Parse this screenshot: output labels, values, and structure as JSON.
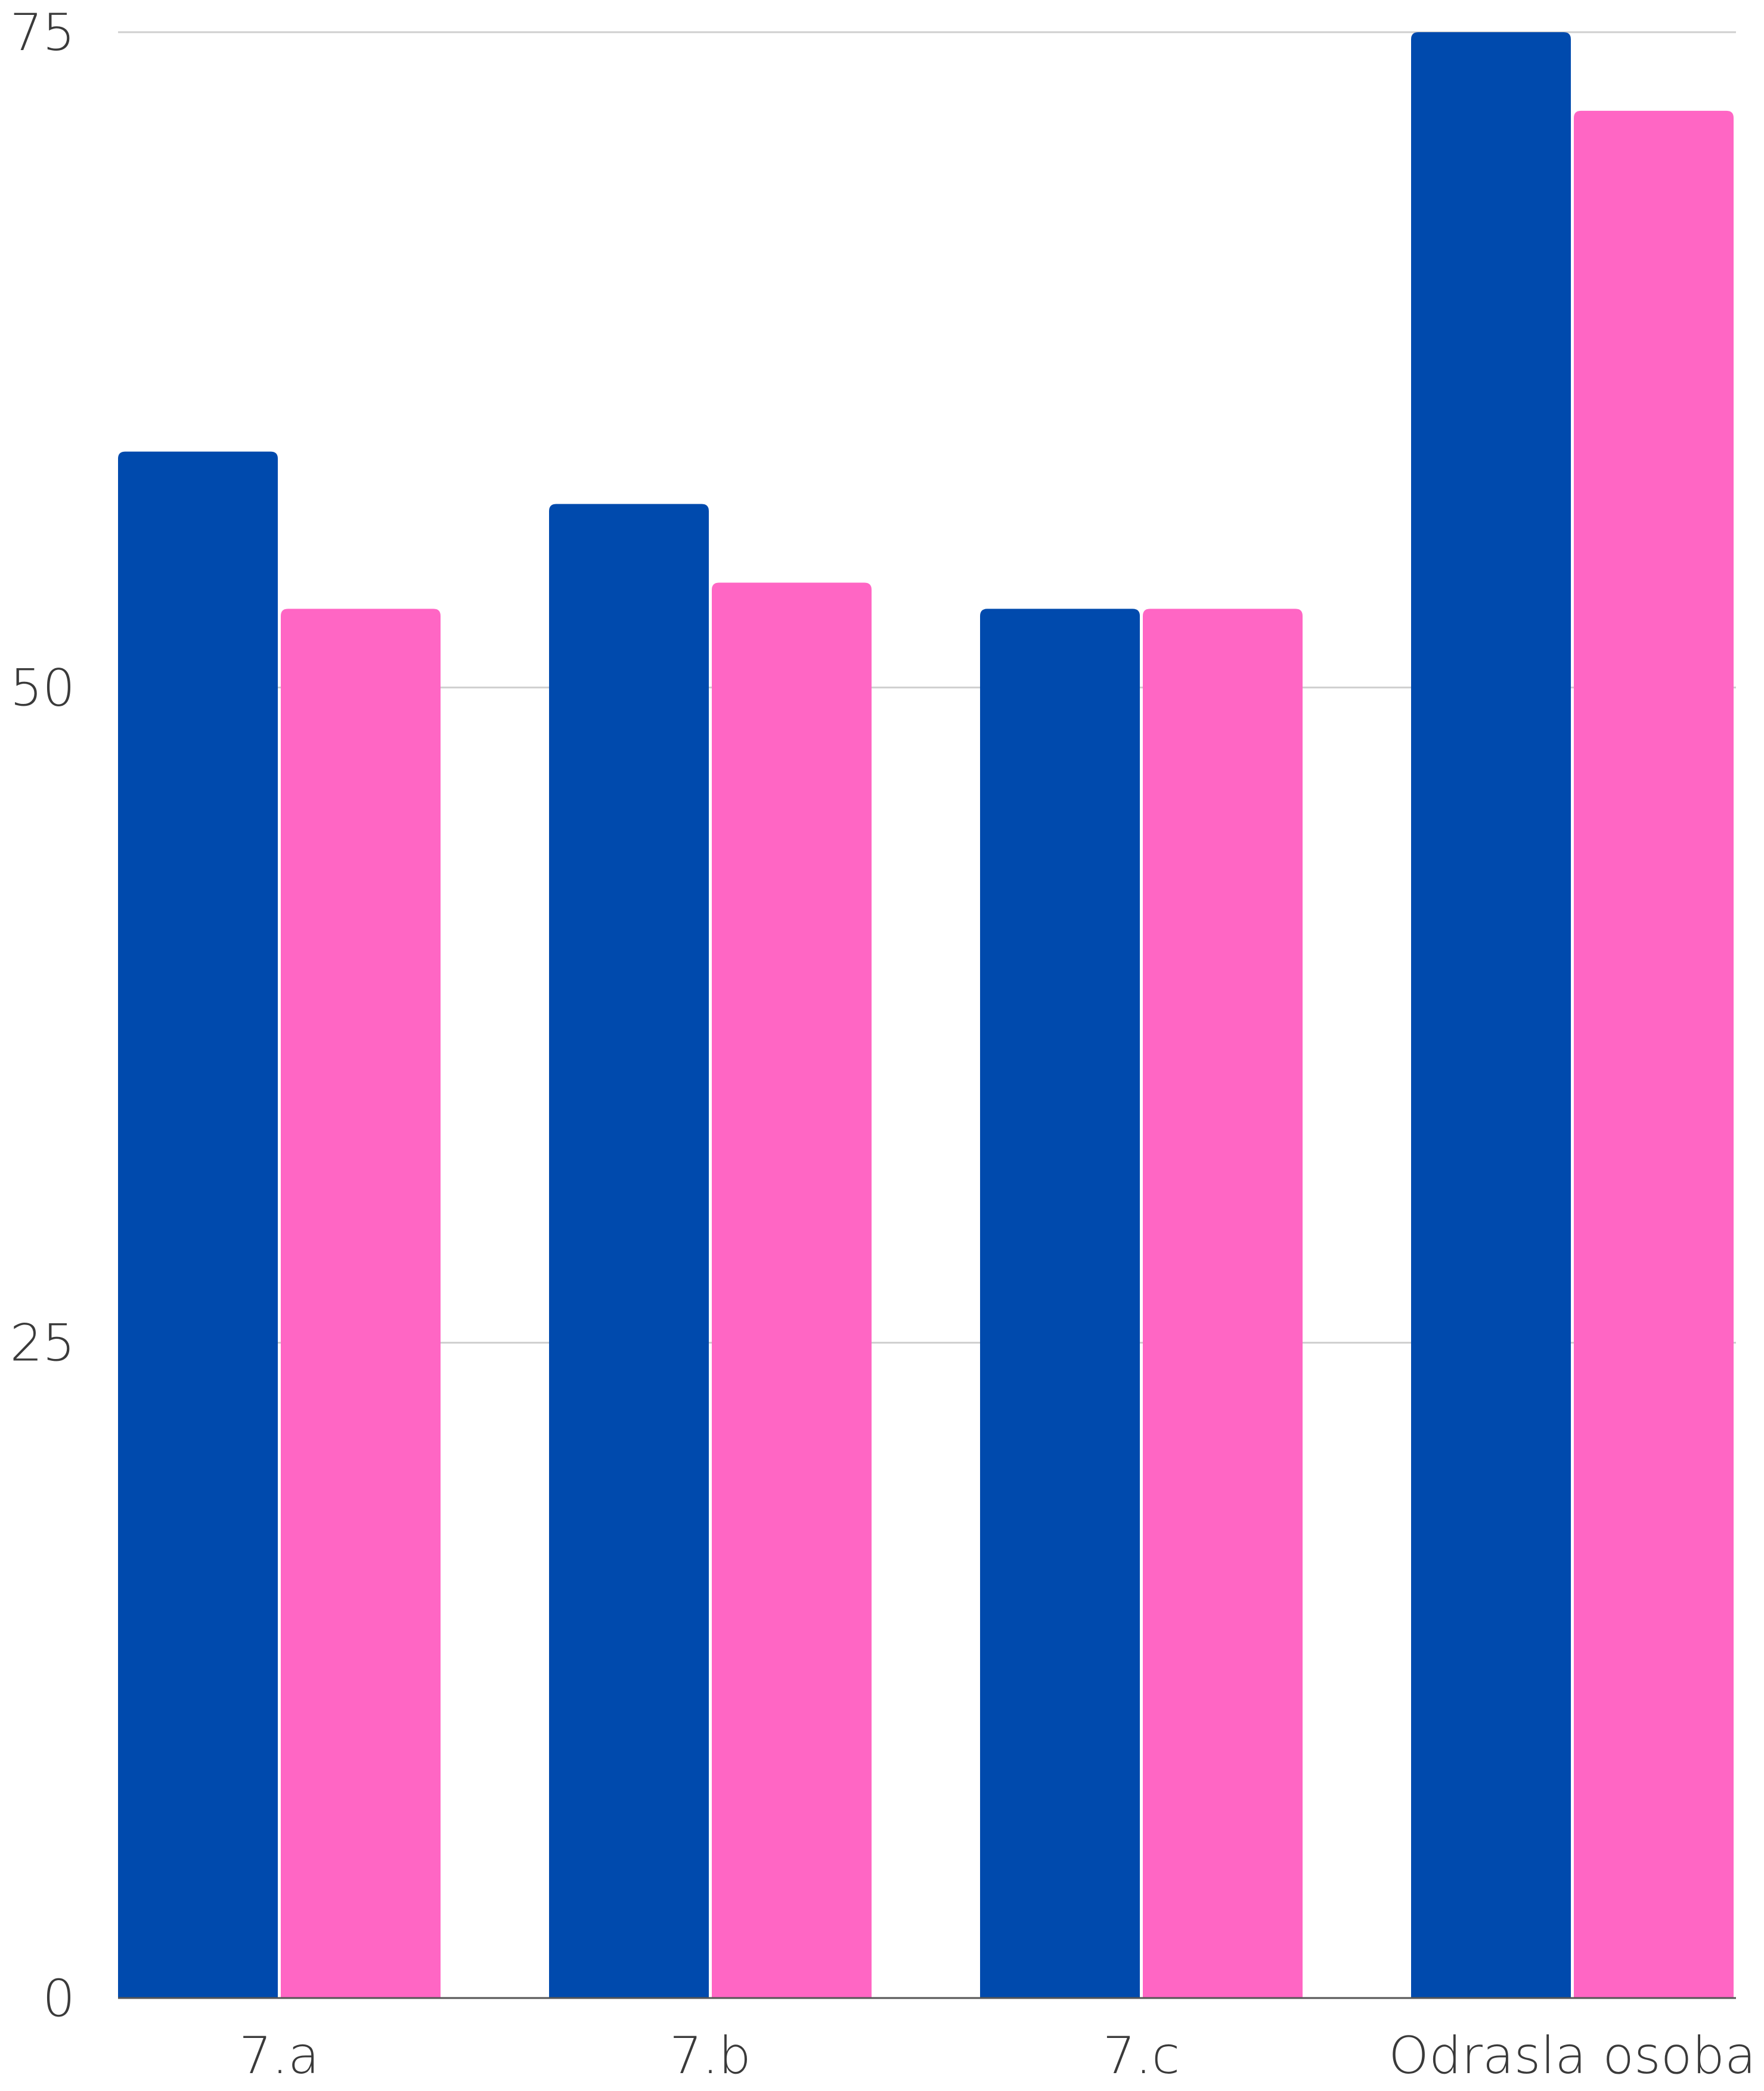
{
  "chart_data": {
    "type": "bar",
    "title": "",
    "xlabel": "",
    "ylabel": "",
    "categories": [
      "7.a",
      "7.b",
      "7.c",
      "Odrasla osoba"
    ],
    "series": [
      {
        "color": "#004aad",
        "values": [
          59,
          57,
          53,
          75
        ]
      },
      {
        "color": "#ff66c4",
        "values": [
          53,
          54,
          53,
          72
        ]
      }
    ],
    "yticks": [
      0,
      25,
      50,
      75
    ],
    "ylim": [
      0,
      75
    ],
    "grid": true,
    "legend": "none"
  }
}
